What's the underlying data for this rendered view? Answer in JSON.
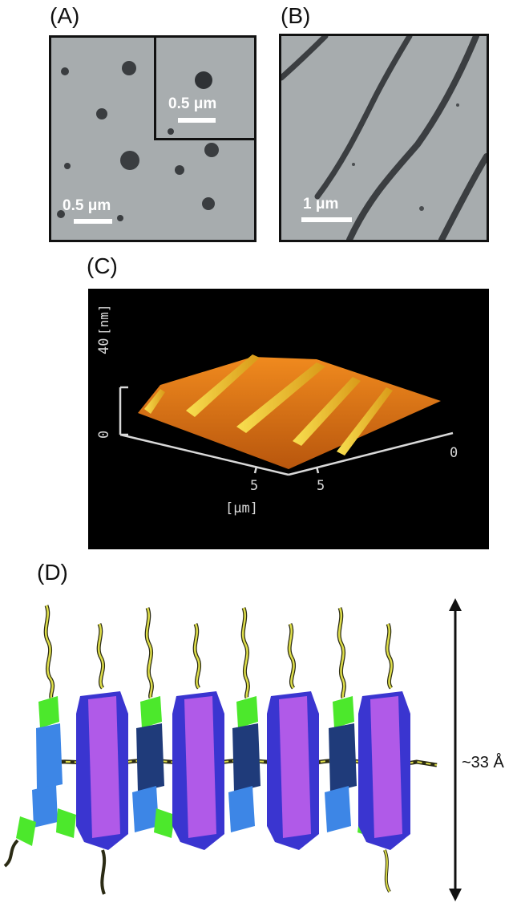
{
  "panels": {
    "a": {
      "label": "(A)",
      "scale_bar": "0.5 μm",
      "inset_scale_bar": "0.5 μm"
    },
    "b": {
      "label": "(B)",
      "scale_bar": "1 μm"
    },
    "c": {
      "label": "(C)",
      "z_unit": "[nm]",
      "z_ticks": [
        "40",
        "0"
      ],
      "x_ticks": [
        "5",
        "5",
        "0"
      ],
      "xy_unit": "[μm]"
    },
    "d": {
      "label": "(D)",
      "dimension": "~33 Å"
    }
  },
  "colors": {
    "tem_background": "#a7acae",
    "afm_surface": "#e07a16",
    "afm_ridge": "#f3d23c",
    "molecule_blue": "#3d86e6",
    "molecule_purple": "#b05ae8",
    "molecule_violet": "#3a35d0",
    "molecule_green": "#4ce82c",
    "chain_yellow": "#dede4a"
  }
}
